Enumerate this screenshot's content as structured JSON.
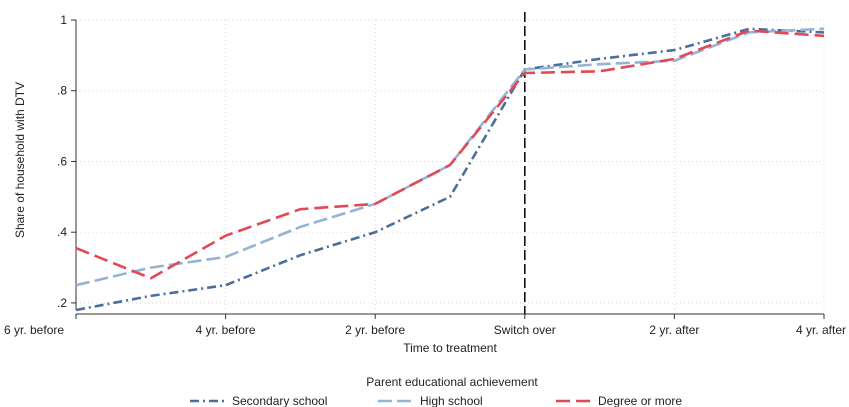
{
  "chart_data": {
    "type": "line",
    "xlabel": "Time to treatment",
    "ylabel": "Share of household with DTV",
    "x": [
      -6,
      -5,
      -4,
      -3,
      -2,
      -1,
      0,
      1,
      2,
      3,
      4
    ],
    "x_tick_labels": [
      "6 yr. before",
      "4 yr. before",
      "2 yr. before",
      "Switch over",
      "2 yr. after",
      "4 yr. after"
    ],
    "x_tick_values": [
      -6,
      -4,
      -2,
      0,
      2,
      4
    ],
    "y_tick_labels": [
      ".2",
      ".4",
      ".6",
      ".8",
      "1"
    ],
    "y_tick_values": [
      0.2,
      0.4,
      0.6,
      0.8,
      1.0
    ],
    "ylim": [
      0.18,
      1.0
    ],
    "xlim": [
      -6,
      4
    ],
    "grid": "dotted",
    "reference_line": {
      "x": 0,
      "style": "dashed"
    },
    "legend_title": "Parent educational achievement",
    "legend_position": "bottom",
    "series": [
      {
        "name": "Secondary school",
        "color": "#4a6f9a",
        "dash": "dashdot",
        "values": [
          0.18,
          0.22,
          0.25,
          0.335,
          0.4,
          0.5,
          0.86,
          0.89,
          0.915,
          0.975,
          0.965
        ]
      },
      {
        "name": "High school",
        "color": "#94b4d4",
        "dash": "longdash",
        "values": [
          0.25,
          0.3,
          0.33,
          0.415,
          0.48,
          0.59,
          0.86,
          0.875,
          0.885,
          0.965,
          0.975
        ]
      },
      {
        "name": "Degree or more",
        "color": "#e04a55",
        "dash": "dash",
        "values": [
          0.355,
          0.27,
          0.39,
          0.465,
          0.48,
          0.59,
          0.85,
          0.855,
          0.89,
          0.97,
          0.955
        ]
      }
    ]
  }
}
